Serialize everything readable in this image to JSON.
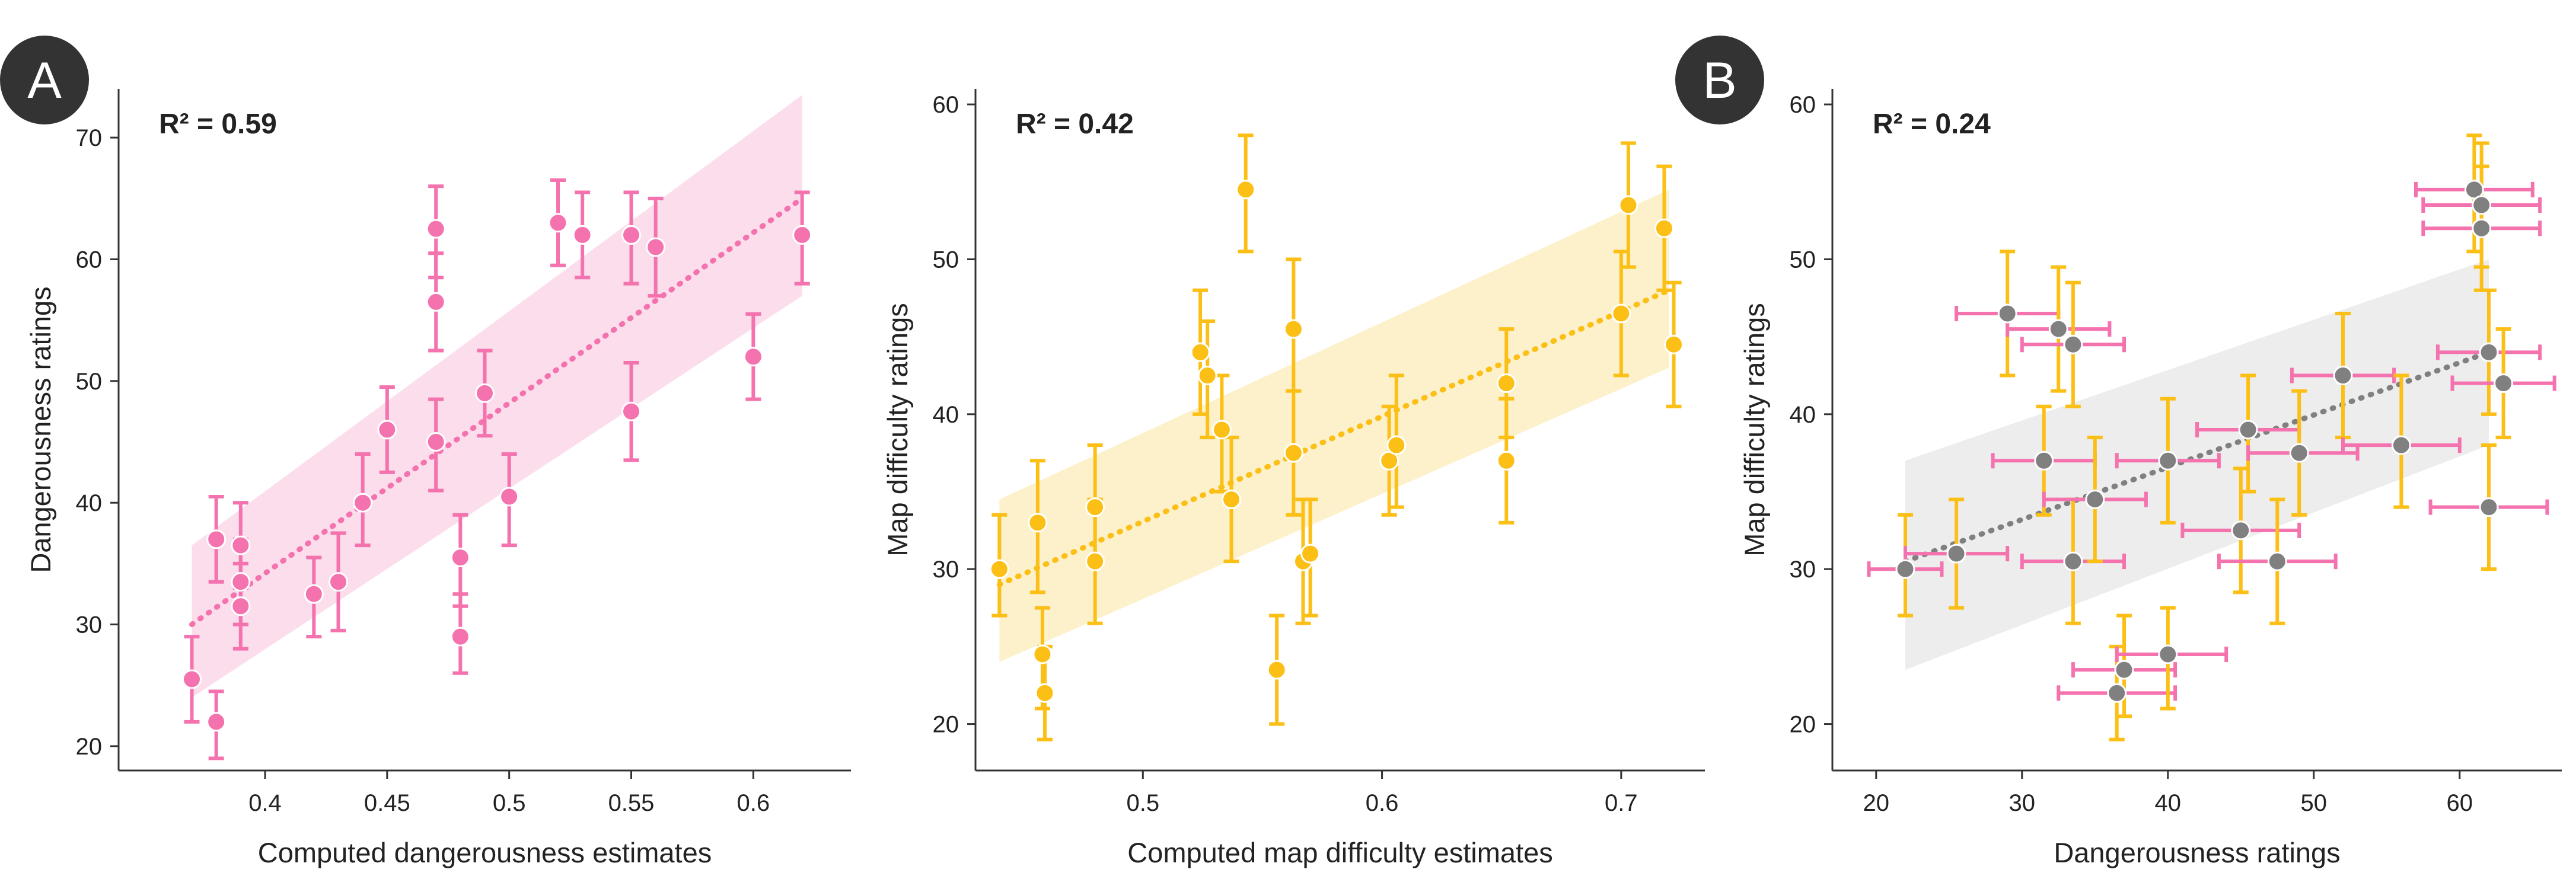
{
  "colors": {
    "pink": "#F472AE",
    "yellow": "#FBBF16",
    "gray": "#808080",
    "pink_band": "#FBD9EA",
    "yellow_band": "#FDF0C6",
    "gray_band": "#EBEBEB",
    "badge": "#333333"
  },
  "chart_data": [
    {
      "panel_label": "A",
      "type": "scatter",
      "annotation": "R² = 0.59",
      "xlabel": "Computed dangerousness estimates",
      "ylabel": "Dangerousness ratings",
      "xlim": [
        0.34,
        0.64
      ],
      "ylim": [
        18,
        74
      ],
      "xticks": [
        0.4,
        0.45,
        0.5,
        0.55,
        0.6
      ],
      "xtick_labels": [
        "0.4",
        "0.45",
        "0.5",
        "0.55",
        "0.6"
      ],
      "yticks": [
        20,
        30,
        40,
        50,
        60,
        70
      ],
      "ytick_labels": [
        "20",
        "30",
        "40",
        "50",
        "60",
        "70"
      ],
      "color": "#F472AE",
      "band_color": "#FBD9EA",
      "fit": {
        "x": [
          0.37,
          0.62
        ],
        "y": [
          30,
          65
        ],
        "ci_low": [
          24,
          57
        ],
        "ci_high": [
          36.5,
          73.5
        ]
      },
      "points": [
        {
          "x": 0.37,
          "y": 25.5,
          "ylo": 22,
          "yhi": 29
        },
        {
          "x": 0.38,
          "y": 22,
          "ylo": 19,
          "yhi": 24.5
        },
        {
          "x": 0.38,
          "y": 37,
          "ylo": 33.5,
          "yhi": 40.5
        },
        {
          "x": 0.39,
          "y": 36.5,
          "ylo": 33,
          "yhi": 40
        },
        {
          "x": 0.39,
          "y": 33.5,
          "ylo": 30,
          "yhi": 37
        },
        {
          "x": 0.39,
          "y": 31.5,
          "ylo": 28,
          "yhi": 35
        },
        {
          "x": 0.42,
          "y": 32.5,
          "ylo": 29,
          "yhi": 35.5
        },
        {
          "x": 0.43,
          "y": 33.5,
          "ylo": 29.5,
          "yhi": 37.5
        },
        {
          "x": 0.44,
          "y": 40,
          "ylo": 36.5,
          "yhi": 44
        },
        {
          "x": 0.45,
          "y": 46,
          "ylo": 42.5,
          "yhi": 49.5
        },
        {
          "x": 0.47,
          "y": 62.5,
          "ylo": 58.5,
          "yhi": 66
        },
        {
          "x": 0.47,
          "y": 56.5,
          "ylo": 52.5,
          "yhi": 60.5
        },
        {
          "x": 0.47,
          "y": 45,
          "ylo": 41,
          "yhi": 48.5
        },
        {
          "x": 0.48,
          "y": 35.5,
          "ylo": 31.5,
          "yhi": 39
        },
        {
          "x": 0.48,
          "y": 29,
          "ylo": 26,
          "yhi": 32.5
        },
        {
          "x": 0.49,
          "y": 49,
          "ylo": 45.5,
          "yhi": 52.5
        },
        {
          "x": 0.5,
          "y": 40.5,
          "ylo": 36.5,
          "yhi": 44
        },
        {
          "x": 0.52,
          "y": 63,
          "ylo": 59.5,
          "yhi": 66.5
        },
        {
          "x": 0.53,
          "y": 62,
          "ylo": 58.5,
          "yhi": 65.5
        },
        {
          "x": 0.55,
          "y": 62,
          "ylo": 58,
          "yhi": 65.5
        },
        {
          "x": 0.55,
          "y": 47.5,
          "ylo": 43.5,
          "yhi": 51.5
        },
        {
          "x": 0.56,
          "y": 61,
          "ylo": 57,
          "yhi": 65
        },
        {
          "x": 0.6,
          "y": 52,
          "ylo": 48.5,
          "yhi": 55.5
        },
        {
          "x": 0.62,
          "y": 62,
          "ylo": 58,
          "yhi": 65.5
        }
      ]
    },
    {
      "type": "scatter",
      "annotation": "R² = 0.42",
      "xlabel": "Computed map difficulty estimates",
      "ylabel": "Map difficulty ratings",
      "xlim": [
        0.43,
        0.735
      ],
      "ylim": [
        17,
        61
      ],
      "xticks": [
        0.5,
        0.6,
        0.7
      ],
      "xtick_labels": [
        "0.5",
        "0.6",
        "0.7"
      ],
      "yticks": [
        20,
        30,
        40,
        50,
        60
      ],
      "ytick_labels": [
        "20",
        "30",
        "40",
        "50",
        "60"
      ],
      "color": "#FBBF16",
      "band_color": "#FDF0C6",
      "fit": {
        "x": [
          0.44,
          0.72
        ],
        "y": [
          29,
          48
        ],
        "ci_low": [
          24,
          43
        ],
        "ci_high": [
          34.5,
          54.5
        ]
      },
      "points": [
        {
          "x": 0.44,
          "y": 30,
          "ylo": 27,
          "yhi": 33.5
        },
        {
          "x": 0.456,
          "y": 33,
          "ylo": 28.5,
          "yhi": 37
        },
        {
          "x": 0.458,
          "y": 24.5,
          "ylo": 21,
          "yhi": 27.5
        },
        {
          "x": 0.459,
          "y": 22,
          "ylo": 19,
          "yhi": 25
        },
        {
          "x": 0.48,
          "y": 34,
          "ylo": 30.5,
          "yhi": 38
        },
        {
          "x": 0.48,
          "y": 30.5,
          "ylo": 26.5,
          "yhi": 34.5
        },
        {
          "x": 0.524,
          "y": 44,
          "ylo": 40,
          "yhi": 48
        },
        {
          "x": 0.527,
          "y": 42.5,
          "ylo": 38.5,
          "yhi": 46
        },
        {
          "x": 0.533,
          "y": 39,
          "ylo": 35,
          "yhi": 42.5
        },
        {
          "x": 0.537,
          "y": 34.5,
          "ylo": 30.5,
          "yhi": 38.5
        },
        {
          "x": 0.543,
          "y": 54.5,
          "ylo": 50.5,
          "yhi": 58
        },
        {
          "x": 0.556,
          "y": 23.5,
          "ylo": 20,
          "yhi": 27
        },
        {
          "x": 0.563,
          "y": 45.5,
          "ylo": 41.5,
          "yhi": 50
        },
        {
          "x": 0.563,
          "y": 37.5,
          "ylo": 33.5,
          "yhi": 41.5
        },
        {
          "x": 0.567,
          "y": 30.5,
          "ylo": 26.5,
          "yhi": 34.5
        },
        {
          "x": 0.57,
          "y": 31,
          "ylo": 27,
          "yhi": 34.5
        },
        {
          "x": 0.603,
          "y": 37,
          "ylo": 33.5,
          "yhi": 40.5
        },
        {
          "x": 0.606,
          "y": 38,
          "ylo": 34,
          "yhi": 42.5
        },
        {
          "x": 0.652,
          "y": 42,
          "ylo": 38.5,
          "yhi": 45.5
        },
        {
          "x": 0.652,
          "y": 37,
          "ylo": 33,
          "yhi": 41
        },
        {
          "x": 0.7,
          "y": 46.5,
          "ylo": 42.5,
          "yhi": 50.5
        },
        {
          "x": 0.703,
          "y": 53.5,
          "ylo": 49.5,
          "yhi": 57.5
        },
        {
          "x": 0.718,
          "y": 52,
          "ylo": 48,
          "yhi": 56
        },
        {
          "x": 0.722,
          "y": 44.5,
          "ylo": 40.5,
          "yhi": 48.5
        }
      ]
    },
    {
      "panel_label": "B",
      "type": "scatter",
      "annotation": "R² = 0.24",
      "xlabel": "Dangerousness ratings",
      "ylabel": "Map difficulty ratings",
      "xlim": [
        17,
        67
      ],
      "ylim": [
        17,
        61
      ],
      "xticks": [
        20,
        30,
        40,
        50,
        60
      ],
      "xtick_labels": [
        "20",
        "30",
        "40",
        "50",
        "60"
      ],
      "yticks": [
        20,
        30,
        40,
        50,
        60
      ],
      "ytick_labels": [
        "20",
        "30",
        "40",
        "50",
        "60"
      ],
      "color": "#808080",
      "xerr_color": "#F472AE",
      "yerr_color": "#FBBF16",
      "band_color": "#EBEBEB",
      "fit": {
        "x": [
          22,
          62
        ],
        "y": [
          30.5,
          44
        ],
        "ci_low": [
          23.5,
          38
        ],
        "ci_high": [
          37,
          50
        ]
      },
      "points": [
        {
          "x": 22,
          "y": 30,
          "xlo": 19.5,
          "xhi": 24.5,
          "ylo": 27,
          "yhi": 33.5
        },
        {
          "x": 25.5,
          "y": 31,
          "xlo": 22,
          "xhi": 29,
          "ylo": 27.5,
          "yhi": 34.5
        },
        {
          "x": 29,
          "y": 46.5,
          "xlo": 25.5,
          "xhi": 32.5,
          "ylo": 42.5,
          "yhi": 50.5
        },
        {
          "x": 31.5,
          "y": 37,
          "xlo": 28,
          "xhi": 35,
          "ylo": 33.5,
          "yhi": 40.5
        },
        {
          "x": 32.5,
          "y": 45.5,
          "xlo": 29,
          "xhi": 36,
          "ylo": 41.5,
          "yhi": 49.5
        },
        {
          "x": 33.5,
          "y": 44.5,
          "xlo": 30,
          "xhi": 37,
          "ylo": 40.5,
          "yhi": 48.5
        },
        {
          "x": 33.5,
          "y": 30.5,
          "xlo": 30,
          "xhi": 37,
          "ylo": 26.5,
          "yhi": 34.5
        },
        {
          "x": 35,
          "y": 34.5,
          "xlo": 31.5,
          "xhi": 38.5,
          "ylo": 30.5,
          "yhi": 38.5
        },
        {
          "x": 36.5,
          "y": 22,
          "xlo": 32.5,
          "xhi": 40.5,
          "ylo": 19,
          "yhi": 25
        },
        {
          "x": 37,
          "y": 23.5,
          "xlo": 33.5,
          "xhi": 40.5,
          "ylo": 20.5,
          "yhi": 27
        },
        {
          "x": 40,
          "y": 37,
          "xlo": 36.5,
          "xhi": 43.5,
          "ylo": 33,
          "yhi": 41
        },
        {
          "x": 40,
          "y": 24.5,
          "xlo": 36.5,
          "xhi": 44,
          "ylo": 21,
          "yhi": 27.5
        },
        {
          "x": 45,
          "y": 32.5,
          "xlo": 41,
          "xhi": 49,
          "ylo": 28.5,
          "yhi": 36.5
        },
        {
          "x": 45.5,
          "y": 39,
          "xlo": 42,
          "xhi": 49,
          "ylo": 35,
          "yhi": 42.5
        },
        {
          "x": 47.5,
          "y": 30.5,
          "xlo": 43.5,
          "xhi": 51.5,
          "ylo": 26.5,
          "yhi": 34.5
        },
        {
          "x": 49,
          "y": 37.5,
          "xlo": 45.5,
          "xhi": 53,
          "ylo": 33.5,
          "yhi": 41.5
        },
        {
          "x": 52,
          "y": 42.5,
          "xlo": 48.5,
          "xhi": 55.5,
          "ylo": 38.5,
          "yhi": 46.5
        },
        {
          "x": 56,
          "y": 38,
          "xlo": 52,
          "xhi": 60,
          "ylo": 34,
          "yhi": 42.5
        },
        {
          "x": 61,
          "y": 54.5,
          "xlo": 57,
          "xhi": 65,
          "ylo": 50.5,
          "yhi": 58
        },
        {
          "x": 61.5,
          "y": 53.5,
          "xlo": 57.5,
          "xhi": 65.5,
          "ylo": 49.5,
          "yhi": 57.5
        },
        {
          "x": 61.5,
          "y": 52,
          "xlo": 57.5,
          "xhi": 65.5,
          "ylo": 48,
          "yhi": 56
        },
        {
          "x": 62,
          "y": 44,
          "xlo": 58.5,
          "xhi": 65.5,
          "ylo": 40,
          "yhi": 48
        },
        {
          "x": 62,
          "y": 34,
          "xlo": 58,
          "xhi": 66,
          "ylo": 30,
          "yhi": 38
        },
        {
          "x": 63,
          "y": 42,
          "xlo": 59.5,
          "xhi": 66.5,
          "ylo": 38.5,
          "yhi": 45.5
        }
      ]
    }
  ]
}
